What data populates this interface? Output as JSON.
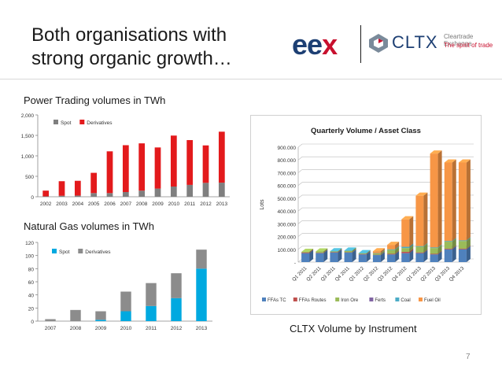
{
  "slide": {
    "title": "Both organisations with\nstrong organic growth…",
    "page_number": "7",
    "power_section_title": "Power Trading volumes in TWh",
    "gas_section_title": "Natural Gas volumes in TWh",
    "cltx_caption": "CLTX Volume by Instrument"
  },
  "logos": {
    "eex_e1": "e",
    "eex_e2": "e",
    "eex_x": "x",
    "cltx_name": "CLTX",
    "cltx_tagline_1": "Cleartrade Exchange",
    "cltx_tagline_2": "The spirit of trade",
    "colors": {
      "eex_blue": "#1d3f73",
      "eex_red": "#c8102e"
    }
  },
  "chart_data": [
    {
      "type": "bar",
      "stacked": true,
      "title": "",
      "xlabel": "",
      "ylabel": "",
      "categories": [
        "2002",
        "2003",
        "2004",
        "2005",
        "2006",
        "2007",
        "2008",
        "2009",
        "2010",
        "2011",
        "2012",
        "2013"
      ],
      "series": [
        {
          "name": "Spot",
          "color": "#7f7f7f",
          "values": [
            10,
            25,
            30,
            90,
            90,
            115,
            150,
            200,
            250,
            290,
            340,
            345
          ]
        },
        {
          "name": "Derivatives",
          "color": "#e31a1c",
          "values": [
            140,
            355,
            360,
            495,
            1020,
            1145,
            1155,
            1005,
            1245,
            1095,
            915,
            1245
          ]
        }
      ],
      "ylim": [
        0,
        2000
      ],
      "yticks": [
        0,
        500,
        1000,
        1500,
        2000
      ],
      "ytick_labels": [
        "0",
        "500",
        "1,000",
        "1,500",
        "2,000"
      ],
      "legend": "top-left",
      "grid": false
    },
    {
      "type": "bar",
      "stacked": true,
      "title": "",
      "xlabel": "",
      "ylabel": "",
      "categories": [
        "2007",
        "2008",
        "2009",
        "2010",
        "2011",
        "2012",
        "2013"
      ],
      "series": [
        {
          "name": "Spot",
          "color": "#00a9e0",
          "values": [
            0,
            0,
            2,
            15,
            23,
            35,
            80
          ]
        },
        {
          "name": "Derivatives",
          "color": "#8c8c8c",
          "values": [
            3,
            17,
            13,
            30,
            35,
            38,
            29
          ]
        }
      ],
      "ylim": [
        0,
        120
      ],
      "yticks": [
        0,
        20,
        40,
        60,
        80,
        100,
        120
      ],
      "ytick_labels": [
        "0",
        "20",
        "40",
        "60",
        "80",
        "100",
        "120"
      ],
      "legend": "top-left",
      "grid": false
    },
    {
      "type": "bar",
      "stacked": true,
      "three_d": true,
      "title": "Quarterly Volume / Asset Class",
      "xlabel": "",
      "ylabel": "Lots",
      "categories": [
        "Q1 2011",
        "Q2 2011",
        "Q3 2011",
        "Q4 2011",
        "Q1 2012",
        "Q2 2012",
        "Q3 2012",
        "Q4 2012",
        "Q1 2013",
        "Q2 2013",
        "Q3 2013",
        "Q4 2013"
      ],
      "series": [
        {
          "name": "FFAs TC",
          "color": "#4f81bd",
          "values": [
            70000,
            70000,
            75000,
            75000,
            60000,
            55000,
            60000,
            70000,
            70000,
            60000,
            100000,
            100000
          ]
        },
        {
          "name": "FFAs Routes",
          "color": "#c0504d",
          "values": [
            5000,
            3000,
            3000,
            2000,
            3000,
            2000,
            5000,
            10000,
            5000,
            5000,
            5000,
            5000
          ]
        },
        {
          "name": "Iron Ore",
          "color": "#9bbb59",
          "values": [
            5000,
            10000,
            5000,
            10000,
            5000,
            10000,
            30000,
            30000,
            45000,
            45000,
            55000,
            60000
          ]
        },
        {
          "name": "Ferts",
          "color": "#8064a2",
          "values": [
            0,
            0,
            0,
            0,
            0,
            0,
            0,
            0,
            0,
            0,
            0,
            0
          ]
        },
        {
          "name": "Coal",
          "color": "#4bacc6",
          "values": [
            0,
            0,
            2000,
            3000,
            2000,
            3000,
            5000,
            10000,
            5000,
            5000,
            5000,
            5000
          ]
        },
        {
          "name": "Fuel Oil",
          "color": "#f79646",
          "values": [
            0,
            0,
            0,
            0,
            0,
            15000,
            35000,
            215000,
            395000,
            735000,
            615000,
            610000
          ]
        }
      ],
      "ylim": [
        0,
        900000
      ],
      "yticks": [
        0,
        100000,
        200000,
        300000,
        400000,
        500000,
        600000,
        700000,
        800000,
        900000
      ],
      "ytick_labels": [
        "-",
        "100.000",
        "200.000",
        "300.000",
        "400.000",
        "500.000",
        "600.000",
        "700.000",
        "800.000",
        "900.000"
      ],
      "legend": "bottom",
      "grid": true
    }
  ]
}
